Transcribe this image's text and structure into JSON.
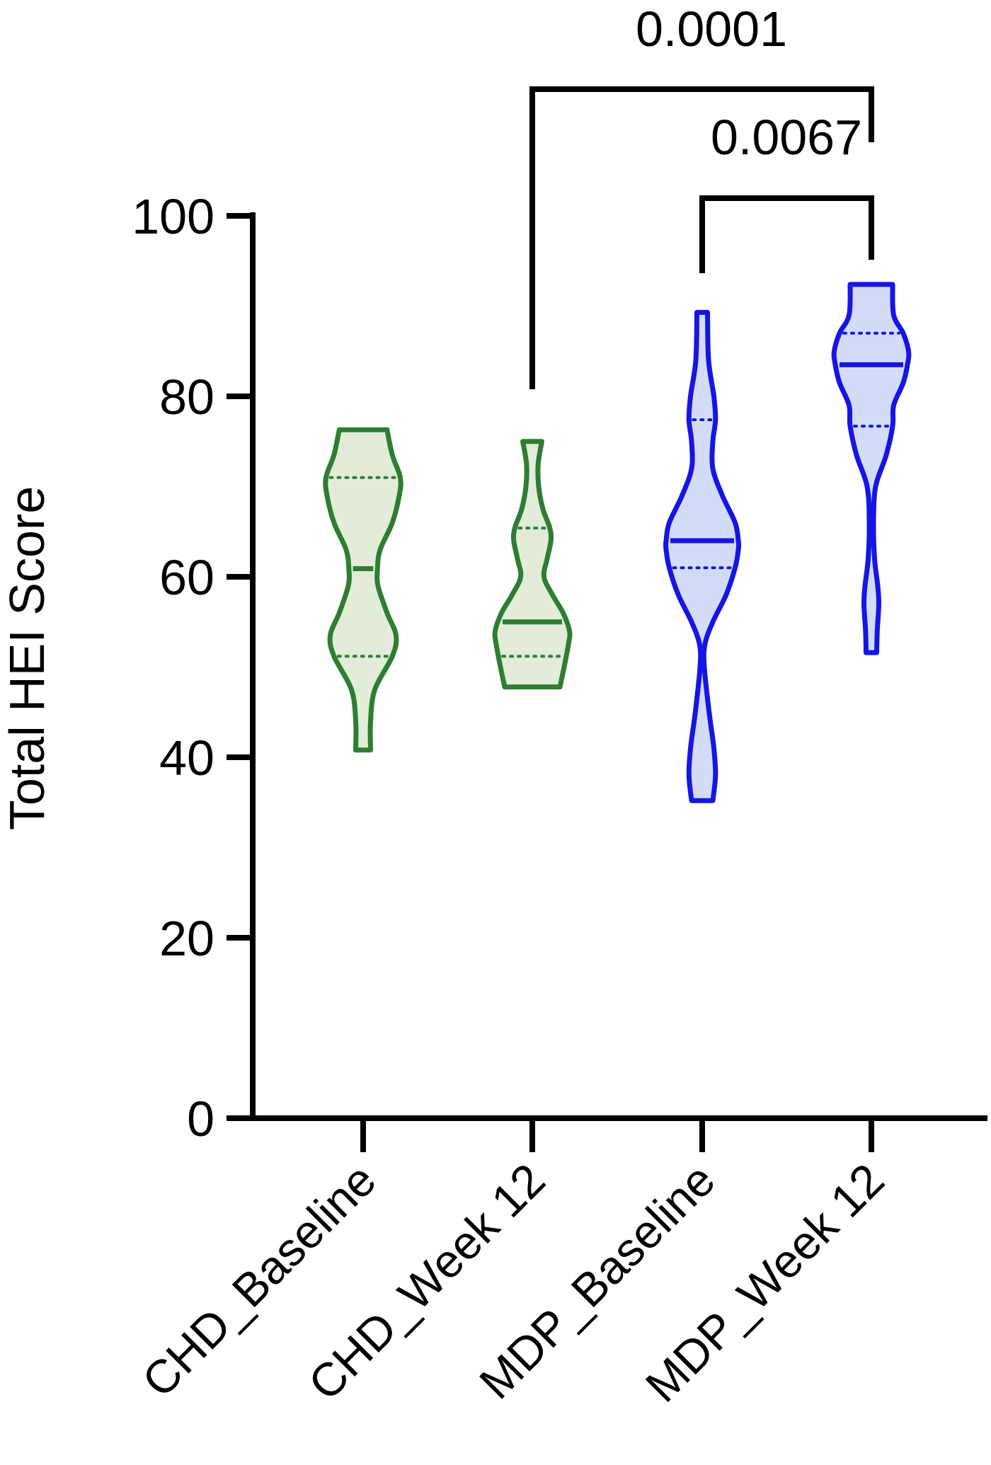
{
  "chart_data": {
    "type": "violin",
    "ylabel": "Total HEI Score",
    "ylim": [
      0,
      100
    ],
    "yticks": [
      0,
      20,
      40,
      60,
      80,
      100
    ],
    "categories": [
      "CHD_Baseline",
      "CHD_Week 12",
      "MDP_Baseline",
      "MDP_Week 12"
    ],
    "groups": [
      {
        "name": "CHD_Baseline",
        "color": "#2e7d32",
        "fill": "#e2ecd9",
        "min": 40.8,
        "max": 76.3,
        "median": 60.9,
        "q1": 51.2,
        "q3": 71.0,
        "profile": [
          [
            40.8,
            0.14
          ],
          [
            44,
            0.14
          ],
          [
            47.5,
            0.22
          ],
          [
            51.2,
            0.55
          ],
          [
            53.5,
            0.62
          ],
          [
            56,
            0.45
          ],
          [
            59,
            0.28
          ],
          [
            60.9,
            0.27
          ],
          [
            63,
            0.32
          ],
          [
            66,
            0.55
          ],
          [
            69,
            0.68
          ],
          [
            71,
            0.7
          ],
          [
            73.5,
            0.55
          ],
          [
            76.3,
            0.45
          ]
        ]
      },
      {
        "name": "CHD_Week 12",
        "color": "#2e7d32",
        "fill": "#e2ecd9",
        "min": 47.8,
        "max": 75.0,
        "median": 55.0,
        "q1": 51.2,
        "q3": 65.4,
        "profile": [
          [
            47.8,
            0.52
          ],
          [
            50,
            0.6
          ],
          [
            52.5,
            0.68
          ],
          [
            54,
            0.7
          ],
          [
            56,
            0.58
          ],
          [
            58,
            0.38
          ],
          [
            60,
            0.22
          ],
          [
            62,
            0.28
          ],
          [
            64,
            0.35
          ],
          [
            65.4,
            0.33
          ],
          [
            67.5,
            0.2
          ],
          [
            70,
            0.12
          ],
          [
            72.5,
            0.11
          ],
          [
            75.0,
            0.18
          ]
        ]
      },
      {
        "name": "MDP_Baseline",
        "color": "#1515e6",
        "fill": "#d3dcf6",
        "min": 35.2,
        "max": 89.3,
        "median": 64.0,
        "q1": 61.0,
        "q3": 77.4,
        "profile": [
          [
            35.2,
            0.2
          ],
          [
            38,
            0.25
          ],
          [
            41,
            0.22
          ],
          [
            45,
            0.13
          ],
          [
            50,
            0.04
          ],
          [
            52.5,
            0.05
          ],
          [
            55,
            0.2
          ],
          [
            58,
            0.45
          ],
          [
            61,
            0.62
          ],
          [
            63,
            0.68
          ],
          [
            64,
            0.68
          ],
          [
            66,
            0.62
          ],
          [
            69,
            0.38
          ],
          [
            72,
            0.2
          ],
          [
            75,
            0.2
          ],
          [
            77.4,
            0.25
          ],
          [
            80,
            0.22
          ],
          [
            84,
            0.12
          ],
          [
            89.3,
            0.1
          ]
        ]
      },
      {
        "name": "MDP_Week 12",
        "color": "#1515e6",
        "fill": "#d3dcf6",
        "min": 51.6,
        "max": 92.4,
        "median": 83.5,
        "q1": 76.7,
        "q3": 87.0,
        "profile": [
          [
            51.6,
            0.1
          ],
          [
            54,
            0.11
          ],
          [
            57,
            0.14
          ],
          [
            59,
            0.12
          ],
          [
            62,
            0.06
          ],
          [
            66,
            0.04
          ],
          [
            70,
            0.08
          ],
          [
            73.5,
            0.28
          ],
          [
            76.7,
            0.4
          ],
          [
            79,
            0.42
          ],
          [
            81.5,
            0.6
          ],
          [
            83.5,
            0.68
          ],
          [
            85,
            0.7
          ],
          [
            87,
            0.6
          ],
          [
            89,
            0.42
          ],
          [
            92.4,
            0.4
          ]
        ]
      }
    ],
    "comparisons": [
      {
        "from": "MDP_Baseline",
        "to": "MDP_Week 12",
        "p_label": "0.0067"
      },
      {
        "from": "CHD_Week 12",
        "to": "MDP_Week 12",
        "p_label": "0.0001"
      }
    ]
  }
}
